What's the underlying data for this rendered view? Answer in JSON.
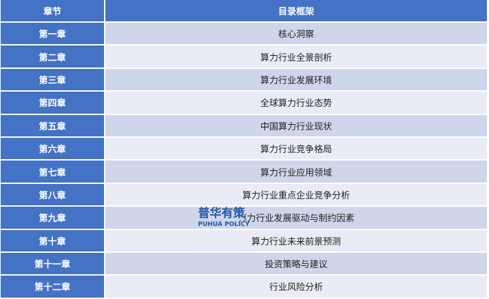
{
  "header": {
    "chapter": "章节",
    "outline": "目录框架"
  },
  "rows": [
    {
      "chapter": "第一章",
      "title": "核心洞察"
    },
    {
      "chapter": "第二章",
      "title": "算力行业全景剖析"
    },
    {
      "chapter": "第三章",
      "title": "算力行业发展环境"
    },
    {
      "chapter": "第四章",
      "title": "全球算力行业态势"
    },
    {
      "chapter": "第五章",
      "title": "中国算力行业现状"
    },
    {
      "chapter": "第六章",
      "title": "算力行业竞争格局"
    },
    {
      "chapter": "第七章",
      "title": "算力行业应用领域"
    },
    {
      "chapter": "第八章",
      "title": "算力行业重点企业竞争分析"
    },
    {
      "chapter": "第九章",
      "title": "算力行业发展驱动与制约因素"
    },
    {
      "chapter": "第十章",
      "title": "算力行业未来前景预测"
    },
    {
      "chapter": "第十一章",
      "title": "投资策略与建议"
    },
    {
      "chapter": "第十二章",
      "title": "行业风险分析"
    }
  ],
  "watermark": {
    "cn": "普华有策",
    "en": "PUHUA POLICY"
  },
  "colors": {
    "header": "#4472c4",
    "row_dark": "#cfd5ea",
    "row_light": "#e9ebf5"
  }
}
